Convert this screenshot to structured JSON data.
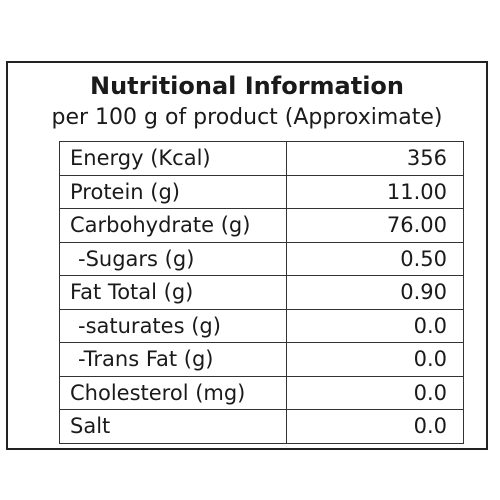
{
  "panel": {
    "title": "Nutritional Information",
    "subtitle": "per 100 g of product (Approximate)"
  },
  "rows": [
    {
      "name": "Energy (Kcal)",
      "value": "356"
    },
    {
      "name": "Protein (g)",
      "value": "11.00"
    },
    {
      "name": "Carbohydrate (g)",
      "value": "76.00"
    },
    {
      "name": "-Sugars (g)",
      "value": "0.50"
    },
    {
      "name": "Fat Total (g)",
      "value": "0.90"
    },
    {
      "name": "-saturates (g)",
      "value": "0.0"
    },
    {
      "name": "-Trans Fat (g)",
      "value": "0.0"
    },
    {
      "name": "Cholesterol (mg)",
      "value": "0.0"
    },
    {
      "name": "Salt",
      "value": "0.0"
    }
  ]
}
